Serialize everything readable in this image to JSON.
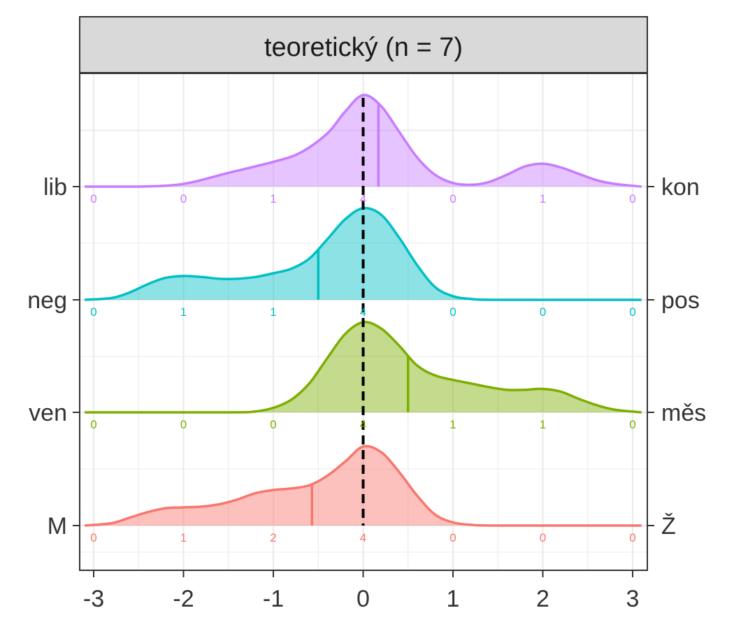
{
  "chart_data": {
    "type": "ridgeline",
    "title": "teoretický (n = 7)",
    "xlabel": "",
    "ylabel": "",
    "xlim": [
      -3.1,
      3.1
    ],
    "x_ticks": [
      -3,
      -2,
      -1,
      0,
      1,
      2,
      3
    ],
    "x_tick_labels": [
      "-3",
      "-2",
      "-1",
      "0",
      "1",
      "2",
      "3"
    ],
    "count_positions": [
      -3,
      -2,
      -1,
      0,
      1,
      2,
      3
    ],
    "reference_line": 0,
    "grid": true,
    "legend": "none",
    "series": [
      {
        "left_label": "lib",
        "right_label": "kon",
        "color": "#C77CFF",
        "mean": 0.17,
        "counts": [
          "0",
          "0",
          "1",
          "4",
          "0",
          "1",
          "0"
        ],
        "density": [
          [
            -3.1,
            0.0
          ],
          [
            -2.5,
            0.0
          ],
          [
            -2.0,
            0.03
          ],
          [
            -1.5,
            0.15
          ],
          [
            -1.0,
            0.27
          ],
          [
            -0.7,
            0.37
          ],
          [
            -0.4,
            0.58
          ],
          [
            -0.2,
            0.82
          ],
          [
            0.0,
            1.0
          ],
          [
            0.2,
            0.88
          ],
          [
            0.4,
            0.6
          ],
          [
            0.6,
            0.32
          ],
          [
            0.8,
            0.13
          ],
          [
            1.0,
            0.04
          ],
          [
            1.2,
            0.02
          ],
          [
            1.4,
            0.05
          ],
          [
            1.6,
            0.13
          ],
          [
            1.8,
            0.22
          ],
          [
            2.0,
            0.25
          ],
          [
            2.2,
            0.21
          ],
          [
            2.4,
            0.14
          ],
          [
            2.6,
            0.07
          ],
          [
            2.8,
            0.03
          ],
          [
            3.1,
            0.0
          ]
        ]
      },
      {
        "left_label": "neg",
        "right_label": "pos",
        "color": "#00BFC4",
        "mean": -0.5,
        "counts": [
          "0",
          "1",
          "1",
          "4",
          "0",
          "0",
          "0"
        ],
        "density": [
          [
            -3.1,
            0.0
          ],
          [
            -2.8,
            0.02
          ],
          [
            -2.6,
            0.08
          ],
          [
            -2.4,
            0.17
          ],
          [
            -2.2,
            0.24
          ],
          [
            -2.0,
            0.26
          ],
          [
            -1.8,
            0.25
          ],
          [
            -1.6,
            0.23
          ],
          [
            -1.4,
            0.23
          ],
          [
            -1.2,
            0.25
          ],
          [
            -1.0,
            0.29
          ],
          [
            -0.8,
            0.34
          ],
          [
            -0.6,
            0.45
          ],
          [
            -0.4,
            0.66
          ],
          [
            -0.2,
            0.88
          ],
          [
            0.0,
            1.0
          ],
          [
            0.2,
            0.93
          ],
          [
            0.4,
            0.68
          ],
          [
            0.6,
            0.38
          ],
          [
            0.8,
            0.14
          ],
          [
            1.0,
            0.04
          ],
          [
            1.2,
            0.01
          ],
          [
            1.5,
            0.0
          ],
          [
            3.1,
            0.0
          ]
        ]
      },
      {
        "left_label": "ven",
        "right_label": "měs",
        "color": "#7CAE00",
        "mean": 0.5,
        "counts": [
          "0",
          "0",
          "0",
          "4",
          "1",
          "1",
          "0"
        ],
        "density": [
          [
            -3.1,
            0.0
          ],
          [
            -1.5,
            0.0
          ],
          [
            -1.2,
            0.01
          ],
          [
            -1.0,
            0.05
          ],
          [
            -0.8,
            0.14
          ],
          [
            -0.6,
            0.32
          ],
          [
            -0.4,
            0.6
          ],
          [
            -0.2,
            0.87
          ],
          [
            0.0,
            1.0
          ],
          [
            0.2,
            0.93
          ],
          [
            0.4,
            0.74
          ],
          [
            0.6,
            0.52
          ],
          [
            0.8,
            0.41
          ],
          [
            1.0,
            0.36
          ],
          [
            1.2,
            0.32
          ],
          [
            1.4,
            0.28
          ],
          [
            1.6,
            0.25
          ],
          [
            1.8,
            0.25
          ],
          [
            2.0,
            0.26
          ],
          [
            2.2,
            0.23
          ],
          [
            2.4,
            0.15
          ],
          [
            2.6,
            0.08
          ],
          [
            2.8,
            0.03
          ],
          [
            3.1,
            0.0
          ]
        ]
      },
      {
        "left_label": "M",
        "right_label": "Ž",
        "color": "#F8766D",
        "mean": -0.57,
        "counts": [
          "0",
          "1",
          "2",
          "4",
          "0",
          "0",
          "0"
        ],
        "density": [
          [
            -3.1,
            0.0
          ],
          [
            -2.8,
            0.03
          ],
          [
            -2.6,
            0.1
          ],
          [
            -2.4,
            0.17
          ],
          [
            -2.2,
            0.22
          ],
          [
            -2.0,
            0.23
          ],
          [
            -1.8,
            0.24
          ],
          [
            -1.6,
            0.27
          ],
          [
            -1.4,
            0.33
          ],
          [
            -1.2,
            0.41
          ],
          [
            -1.0,
            0.45
          ],
          [
            -0.8,
            0.47
          ],
          [
            -0.6,
            0.51
          ],
          [
            -0.4,
            0.63
          ],
          [
            -0.2,
            0.81
          ],
          [
            0.0,
            1.0
          ],
          [
            0.2,
            0.93
          ],
          [
            0.4,
            0.68
          ],
          [
            0.6,
            0.38
          ],
          [
            0.8,
            0.14
          ],
          [
            1.0,
            0.04
          ],
          [
            1.2,
            0.01
          ],
          [
            1.5,
            0.0
          ],
          [
            3.1,
            0.0
          ]
        ]
      }
    ]
  }
}
